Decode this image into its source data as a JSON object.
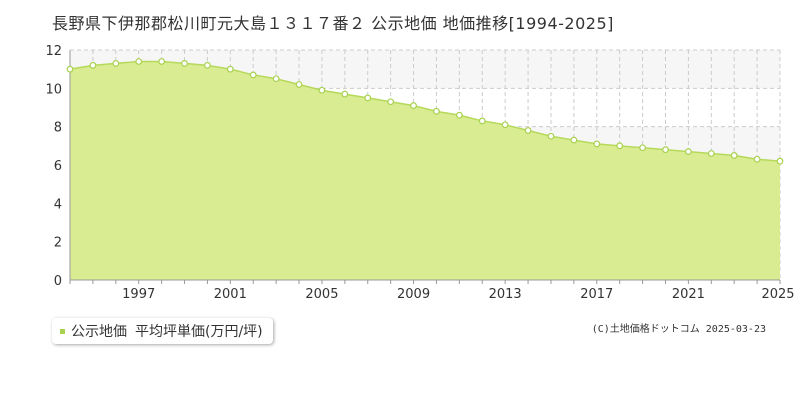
{
  "title": "長野県下伊那郡松川町元大島１３１７番２ 公示地価 地価推移[1994-2025]",
  "legend": {
    "series_name": "公示地価",
    "metric": "平均坪単価(万円/坪)"
  },
  "copyright": "(C)土地価格ドットコム 2025-03-23",
  "colors": {
    "fill": "#d9ec92",
    "line": "#b5d95a",
    "marker": "#a8d14f",
    "grid": "#cccccc",
    "band": "#f6f6f6"
  },
  "chart_data": {
    "type": "area",
    "title": "",
    "xlabel": "",
    "ylabel": "",
    "ylim": [
      0,
      12
    ],
    "yticks": [
      0,
      2,
      4,
      6,
      8,
      10,
      12
    ],
    "xlim": [
      1994,
      2025
    ],
    "xtick_labels": [
      "1997",
      "2001",
      "2005",
      "2009",
      "2013",
      "2017",
      "2021",
      "2025"
    ],
    "grid": true,
    "x": [
      1994,
      1995,
      1996,
      1997,
      1998,
      1999,
      2000,
      2001,
      2002,
      2003,
      2004,
      2005,
      2006,
      2007,
      2008,
      2009,
      2010,
      2011,
      2012,
      2013,
      2014,
      2015,
      2016,
      2017,
      2018,
      2019,
      2020,
      2021,
      2022,
      2023,
      2024,
      2025
    ],
    "series": [
      {
        "values": [
          11.0,
          11.2,
          11.3,
          11.4,
          11.4,
          11.3,
          11.2,
          11.0,
          10.7,
          10.5,
          10.2,
          9.9,
          9.7,
          9.5,
          9.3,
          9.1,
          8.8,
          8.6,
          8.3,
          8.1,
          7.8,
          7.5,
          7.3,
          7.1,
          7.0,
          6.9,
          6.8,
          6.7,
          6.6,
          6.5,
          6.3,
          6.2
        ]
      }
    ]
  }
}
